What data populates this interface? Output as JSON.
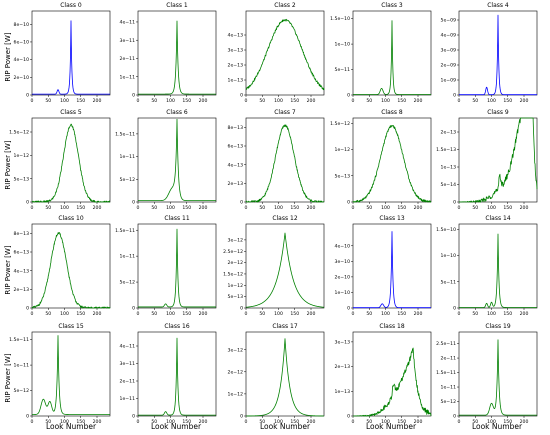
{
  "figure": {
    "ylabel": "RIP Power [W]",
    "xlabel": "Look Number"
  },
  "chart_data": [
    {
      "type": "line",
      "title": "Class 0",
      "color": "#0000ff",
      "xlim": [
        0,
        240
      ],
      "ylim": [
        0,
        9.5e-10
      ],
      "xticks": [
        0,
        50,
        100,
        150,
        200
      ],
      "yticks": [
        2e-10,
        4e-10,
        6e-10,
        8e-10
      ],
      "ytick_labels": [
        "2e−10",
        "4e−10",
        "6e−10",
        "8e−10"
      ],
      "series": [
        {
          "shape": "spike",
          "peak_x": 120,
          "peak_y": 8.3e-10,
          "base": 1e-11,
          "width": 2.5,
          "bumps": [
            [
              80,
              5e-11,
              4
            ]
          ]
        }
      ]
    },
    {
      "type": "line",
      "title": "Class 1",
      "color": "#008000",
      "xlim": [
        0,
        240
      ],
      "ylim": [
        0,
        4.6e-11
      ],
      "xticks": [
        0,
        50,
        100,
        150,
        200
      ],
      "yticks": [
        1e-11,
        2e-11,
        3e-11,
        4e-11
      ],
      "ytick_labels": [
        "1e−11",
        "2e−11",
        "3e−11",
        "4e−11"
      ],
      "series": [
        {
          "shape": "spike",
          "peak_x": 120,
          "peak_y": 4e-11,
          "base": 5e-13,
          "width": 3.5,
          "bumps": []
        }
      ]
    },
    {
      "type": "line",
      "title": "Class 2",
      "color": "#008000",
      "xlim": [
        0,
        240
      ],
      "ylim": [
        0,
        5.6e-13
      ],
      "xticks": [
        0,
        50,
        100,
        150,
        200
      ],
      "yticks": [
        1e-13,
        2e-13,
        3e-13,
        4e-13
      ],
      "ytick_labels": [
        "1e−13",
        "2e−13",
        "3e−13",
        "4e−13"
      ],
      "series": [
        {
          "shape": "hill",
          "peak_x": 120,
          "peak_y": 5e-13,
          "base": 0,
          "width": 65,
          "bumps": []
        }
      ]
    },
    {
      "type": "line",
      "title": "Class 3",
      "color": "#008000",
      "xlim": [
        0,
        240
      ],
      "ylim": [
        0,
        1.65e-10
      ],
      "xticks": [
        0,
        50,
        100,
        150,
        200
      ],
      "yticks": [
        5e-11,
        1e-10,
        1.5e-10
      ],
      "ytick_labels": [
        "5e−11",
        "1e−10",
        "1.5e−10"
      ],
      "series": [
        {
          "shape": "spike",
          "peak_x": 120,
          "peak_y": 1.45e-10,
          "base": 1e-12,
          "width": 2.5,
          "bumps": [
            [
              88,
              1.2e-11,
              6
            ]
          ]
        }
      ]
    },
    {
      "type": "line",
      "title": "Class 4",
      "color": "#0000ff",
      "xlim": [
        0,
        240
      ],
      "ylim": [
        0,
        5.6e-09
      ],
      "xticks": [
        0,
        50,
        100,
        150,
        200
      ],
      "yticks": [
        1e-09,
        2e-09,
        3e-09,
        4e-09,
        5e-09
      ],
      "ytick_labels": [
        "1e−09",
        "2e−09",
        "3e−09",
        "4e−09",
        "5e−09"
      ],
      "series": [
        {
          "shape": "spike",
          "peak_x": 120,
          "peak_y": 5.3e-09,
          "base": 2e-11,
          "width": 2.5,
          "bumps": [
            [
              85,
              5e-10,
              4
            ]
          ]
        }
      ]
    },
    {
      "type": "line",
      "title": "Class 5",
      "color": "#008000",
      "xlim": [
        0,
        240
      ],
      "ylim": [
        0,
        1.8e-12
      ],
      "xticks": [
        0,
        50,
        100,
        150,
        200
      ],
      "yticks": [
        5e-13,
        1e-12,
        1.5e-12
      ],
      "ytick_labels": [
        "5e−13",
        "1e−12",
        "1.5e−12"
      ],
      "series": [
        {
          "shape": "hill",
          "peak_x": 120,
          "peak_y": 1.65e-12,
          "base": 0,
          "width": 28,
          "bumps": []
        }
      ]
    },
    {
      "type": "line",
      "title": "Class 6",
      "color": "#008000",
      "xlim": [
        0,
        240
      ],
      "ylim": [
        0,
        1.85e-11
      ],
      "xticks": [
        0,
        50,
        100,
        150,
        200
      ],
      "yticks": [
        5e-12,
        1e-11,
        1.5e-11
      ],
      "ytick_labels": [
        "5e−12",
        "1e−11",
        "1.5e−11"
      ],
      "series": [
        {
          "shape": "spike",
          "peak_x": 120,
          "peak_y": 1.7e-11,
          "base": 3e-13,
          "width": 4,
          "bumps": [
            [
              105,
              2.5e-12,
              15
            ]
          ]
        }
      ]
    },
    {
      "type": "line",
      "title": "Class 7",
      "color": "#008000",
      "xlim": [
        0,
        240
      ],
      "ylim": [
        0,
        9e-13
      ],
      "xticks": [
        0,
        50,
        100,
        150,
        200
      ],
      "yticks": [
        2e-13,
        4e-13,
        6e-13,
        8e-13
      ],
      "ytick_labels": [
        "2e−13",
        "4e−13",
        "6e−13",
        "8e−13"
      ],
      "series": [
        {
          "shape": "hill",
          "peak_x": 120,
          "peak_y": 8.2e-13,
          "base": 0,
          "width": 35,
          "bumps": []
        }
      ]
    },
    {
      "type": "line",
      "title": "Class 8",
      "color": "#008000",
      "xlim": [
        0,
        240
      ],
      "ylim": [
        0,
        1.6e-12
      ],
      "xticks": [
        0,
        50,
        100,
        150,
        200
      ],
      "yticks": [
        5e-13,
        1e-12,
        1.5e-12
      ],
      "ytick_labels": [
        "5e−13",
        "1e−12",
        "1.5e−12"
      ],
      "series": [
        {
          "shape": "hill",
          "peak_x": 120,
          "peak_y": 1.45e-12,
          "base": 0,
          "width": 42,
          "bumps": []
        }
      ]
    },
    {
      "type": "line",
      "title": "Class 9",
      "color": "#008000",
      "xlim": [
        0,
        240
      ],
      "ylim": [
        0,
        2.4e-13
      ],
      "xticks": [
        0,
        50,
        100,
        150,
        200
      ],
      "yticks": [
        5e-14,
        1e-13,
        1.5e-13,
        2e-13
      ],
      "ytick_labels": [
        "5e−14",
        "1e−13",
        "1.5e−13",
        "2e−13"
      ],
      "series": [
        {
          "shape": "ramp",
          "peak_x": 228,
          "peak_y": 2.2e-13,
          "base": 0,
          "width": 6,
          "bumps": [
            [
              125,
              4e-14,
              4
            ],
            [
              195,
              1.1e-13,
              30
            ]
          ]
        }
      ]
    },
    {
      "type": "line",
      "title": "Class 10",
      "color": "#008000",
      "xlim": [
        0,
        240
      ],
      "ylim": [
        0,
        9e-13
      ],
      "xticks": [
        0,
        50,
        100,
        150,
        200
      ],
      "yticks": [
        2e-13,
        4e-13,
        6e-13,
        8e-13
      ],
      "ytick_labels": [
        "2e−13",
        "4e−13",
        "6e−13",
        "8e−13"
      ],
      "series": [
        {
          "shape": "hill",
          "peak_x": 82,
          "peak_y": 8e-13,
          "base": 0,
          "width": 30,
          "bumps": []
        }
      ]
    },
    {
      "type": "line",
      "title": "Class 11",
      "color": "#008000",
      "xlim": [
        0,
        240
      ],
      "ylim": [
        0,
        1.62e-11
      ],
      "xticks": [
        0,
        50,
        100,
        150,
        200
      ],
      "yticks": [
        5e-12,
        1e-11,
        1.5e-11
      ],
      "ytick_labels": [
        "5e−12",
        "1e−11",
        "1.5e−11"
      ],
      "series": [
        {
          "shape": "spike",
          "peak_x": 120,
          "peak_y": 1.5e-11,
          "base": 2e-13,
          "width": 3,
          "bumps": [
            [
              85,
              6e-13,
              5
            ]
          ]
        }
      ]
    },
    {
      "type": "line",
      "title": "Class 12",
      "color": "#008000",
      "xlim": [
        0,
        240
      ],
      "ylim": [
        0,
        3.7e-12
      ],
      "xticks": [
        0,
        50,
        100,
        150,
        200
      ],
      "yticks": [
        5e-13,
        1e-12,
        1.5e-12,
        2e-12,
        2.5e-12,
        3e-12
      ],
      "ytick_labels": [
        "5e−13",
        "1e−12",
        "1.5e−12",
        "2e−12",
        "2.5e−12",
        "3e−12"
      ],
      "series": [
        {
          "shape": "cusp",
          "peak_x": 120,
          "peak_y": 3.3e-12,
          "base": 0,
          "width": 26,
          "bumps": []
        }
      ]
    },
    {
      "type": "line",
      "title": "Class 13",
      "color": "#0000ff",
      "xlim": [
        0,
        240
      ],
      "ylim": [
        0,
        5.4e-10
      ],
      "xticks": [
        0,
        50,
        100,
        150,
        200
      ],
      "yticks": [
        1e-10,
        2e-10,
        3e-10,
        4e-10
      ],
      "ytick_labels": [
        "1e−10",
        "2e−10",
        "3e−10",
        "4e−10"
      ],
      "series": [
        {
          "shape": "spike",
          "peak_x": 120,
          "peak_y": 4.9e-10,
          "base": 2e-12,
          "width": 3,
          "bumps": [
            [
              90,
              2.5e-11,
              6
            ]
          ]
        }
      ]
    },
    {
      "type": "line",
      "title": "Class 14",
      "color": "#008000",
      "xlim": [
        0,
        240
      ],
      "ylim": [
        0,
        1.6e-10
      ],
      "xticks": [
        0,
        50,
        100,
        150,
        200
      ],
      "yticks": [
        5e-11,
        1e-10,
        1.5e-10
      ],
      "ytick_labels": [
        "5e−11",
        "1e−10",
        "1.5e−10"
      ],
      "series": [
        {
          "shape": "spike",
          "peak_x": 120,
          "peak_y": 1.4e-10,
          "base": 1e-12,
          "width": 3,
          "bumps": [
            [
              85,
              8e-12,
              4
            ],
            [
              100,
              1e-11,
              4
            ]
          ]
        }
      ]
    },
    {
      "type": "line",
      "title": "Class 15",
      "color": "#008000",
      "xlim": [
        0,
        240
      ],
      "ylim": [
        0,
        1.65e-11
      ],
      "xticks": [
        0,
        50,
        100,
        150,
        200
      ],
      "yticks": [
        5e-12,
        1e-11,
        1.5e-11
      ],
      "ytick_labels": [
        "5e−12",
        "1e−11",
        "1.5e−11"
      ],
      "series": [
        {
          "shape": "spike",
          "peak_x": 80,
          "peak_y": 1.55e-11,
          "base": 3e-13,
          "width": 3.5,
          "bumps": [
            [
              35,
              3e-12,
              10
            ],
            [
              55,
              2.5e-12,
              8
            ]
          ]
        }
      ]
    },
    {
      "type": "line",
      "title": "Class 16",
      "color": "#008000",
      "xlim": [
        0,
        240
      ],
      "ylim": [
        0,
        4.8e-11
      ],
      "xticks": [
        0,
        50,
        100,
        150,
        200
      ],
      "yticks": [
        1e-11,
        2e-11,
        3e-11,
        4e-11
      ],
      "ytick_labels": [
        "1e−11",
        "2e−11",
        "3e−11",
        "4e−11"
      ],
      "series": [
        {
          "shape": "spike",
          "peak_x": 120,
          "peak_y": 4.4e-11,
          "base": 5e-13,
          "width": 3,
          "bumps": [
            [
              85,
              2e-12,
              5
            ]
          ]
        }
      ]
    },
    {
      "type": "line",
      "title": "Class 17",
      "color": "#008000",
      "xlim": [
        0,
        240
      ],
      "ylim": [
        0,
        3.8e-12
      ],
      "xticks": [
        0,
        50,
        100,
        150,
        200
      ],
      "yticks": [
        1e-12,
        2e-12,
        3e-12
      ],
      "ytick_labels": [
        "1e−12",
        "2e−12",
        "3e−12"
      ],
      "series": [
        {
          "shape": "cusp",
          "peak_x": 120,
          "peak_y": 3.5e-12,
          "base": 0,
          "width": 15,
          "bumps": []
        }
      ]
    },
    {
      "type": "line",
      "title": "Class 18",
      "color": "#008000",
      "xlim": [
        0,
        240
      ],
      "ylim": [
        0,
        3.4e-13
      ],
      "xticks": [
        0,
        50,
        100,
        150,
        200
      ],
      "yticks": [
        1e-13,
        2e-13,
        3e-13
      ],
      "ytick_labels": [
        "1e−13",
        "2e−13",
        "3e−13"
      ],
      "series": [
        {
          "shape": "ramp",
          "peak_x": 185,
          "peak_y": 2.7e-13,
          "base": 0,
          "width": 15,
          "bumps": [
            [
              125,
              5e-14,
              5
            ]
          ]
        }
      ]
    },
    {
      "type": "line",
      "title": "Class 19",
      "color": "#008000",
      "xlim": [
        0,
        240
      ],
      "ylim": [
        0,
        2.9e-11
      ],
      "xticks": [
        0,
        50,
        100,
        150,
        200
      ],
      "yticks": [
        5e-12,
        1e-11,
        1.5e-11,
        2e-11,
        2.5e-11
      ],
      "ytick_labels": [
        "5e−12",
        "1e−11",
        "1.5e−11",
        "2e−11",
        "2.5e−11"
      ],
      "series": [
        {
          "shape": "spike",
          "peak_x": 120,
          "peak_y": 2.6e-11,
          "base": 3e-13,
          "width": 3.5,
          "bumps": [
            [
              100,
              4e-12,
              8
            ]
          ]
        }
      ]
    }
  ]
}
